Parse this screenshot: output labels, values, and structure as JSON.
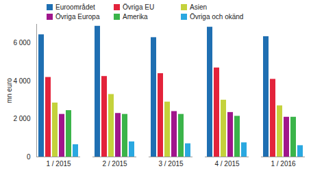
{
  "chart_data": {
    "type": "bar",
    "y_label": "mn euro",
    "categories": [
      "1 / 2015",
      "2 / 2015",
      "3 / 2015",
      "4 / 2015",
      "1 / 2016"
    ],
    "series": [
      {
        "name": "Euroområdet",
        "color": "#1f6fb2",
        "values": [
          6450,
          6900,
          6300,
          6850,
          6350
        ]
      },
      {
        "name": "Övriga EU",
        "color": "#e3233b",
        "values": [
          4200,
          4250,
          4400,
          4700,
          4100
        ]
      },
      {
        "name": "Asien",
        "color": "#c4d23c",
        "values": [
          2850,
          3300,
          2900,
          3000,
          2700
        ]
      },
      {
        "name": "Övriga Europa",
        "color": "#a0168c",
        "values": [
          2250,
          2300,
          2400,
          2350,
          2100
        ]
      },
      {
        "name": "Amerika",
        "color": "#3bb44a",
        "values": [
          2450,
          2250,
          2250,
          2150,
          2100
        ]
      },
      {
        "name": "Övriga och okänd",
        "color": "#2aa8e0",
        "values": [
          650,
          800,
          700,
          750,
          600
        ]
      }
    ],
    "ylim": [
      0,
      7000
    ],
    "yticks": [
      0,
      {
        "value": 2000,
        "label": "2 000"
      },
      {
        "value": 4000,
        "label": "4 000"
      },
      {
        "value": 6000,
        "label": "6 000"
      }
    ],
    "grid": false,
    "legend": "top"
  }
}
